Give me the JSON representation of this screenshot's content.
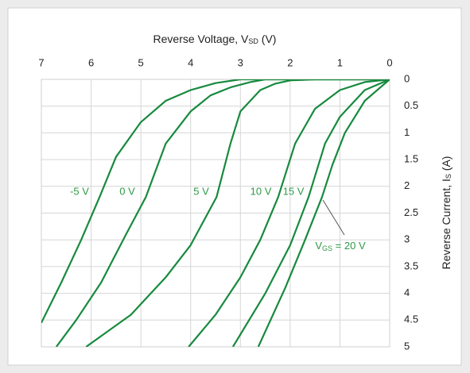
{
  "chart_data": {
    "type": "line",
    "xlabel": [
      "Reverse Voltage, V",
      "SD",
      " (V)"
    ],
    "ylabel": [
      "Reverse Current, I",
      "S",
      " (A)"
    ],
    "xlim": [
      7,
      0
    ],
    "ylim": [
      5,
      0
    ],
    "xticks": [
      7,
      6,
      5,
      4,
      3,
      2,
      1,
      0
    ],
    "yticks": [
      0,
      0.5,
      1,
      1.5,
      2,
      2.5,
      3,
      3.5,
      4,
      4.5,
      5
    ],
    "grid": true,
    "color": "#178a3e",
    "series": [
      {
        "name": "-5 V",
        "x": [
          0,
          1,
          2,
          3,
          3.5,
          4,
          4.5,
          5,
          5.5,
          5.83,
          6.2,
          6.6,
          7
        ],
        "values": [
          0,
          0,
          0,
          0,
          0.07,
          0.2,
          0.4,
          0.8,
          1.45,
          2.2,
          3.0,
          3.8,
          4.55
        ]
      },
      {
        "name": "0 V",
        "x": [
          0,
          2.5,
          2.8,
          3.2,
          3.6,
          4,
          4.5,
          4.9,
          5.3,
          5.8,
          6.3,
          6.7
        ],
        "values": [
          0,
          0,
          0.05,
          0.15,
          0.3,
          0.6,
          1.2,
          2.2,
          2.9,
          3.8,
          4.5,
          5
        ]
      },
      {
        "name": "5 V",
        "x": [
          0,
          1.5,
          2,
          2.3,
          2.6,
          3,
          3.2,
          3.48,
          4,
          4.5,
          5.2,
          6.1
        ],
        "values": [
          0,
          0,
          0.02,
          0.08,
          0.2,
          0.6,
          1.2,
          2.2,
          3.1,
          3.7,
          4.4,
          5
        ]
      },
      {
        "name": "10 V",
        "x": [
          0,
          0.5,
          1,
          1.5,
          1.9,
          2.24,
          2.6,
          3.0,
          3.5,
          4.04
        ],
        "values": [
          0,
          0.05,
          0.2,
          0.55,
          1.2,
          2.2,
          3.0,
          3.7,
          4.4,
          5
        ]
      },
      {
        "name": "15 V",
        "x": [
          0,
          0.5,
          1,
          1.3,
          1.63,
          2,
          2.5,
          3.15
        ],
        "values": [
          0,
          0.2,
          0.7,
          1.2,
          2.2,
          3.1,
          4.0,
          5
        ]
      },
      {
        "name": [
          "V",
          "GS",
          " = 20 V"
        ],
        "x": [
          0,
          0.5,
          0.9,
          1.15,
          1.36,
          1.7,
          2.1,
          2.64
        ],
        "values": [
          0,
          0.4,
          1.0,
          1.6,
          2.2,
          3.0,
          3.9,
          5
        ]
      }
    ]
  }
}
